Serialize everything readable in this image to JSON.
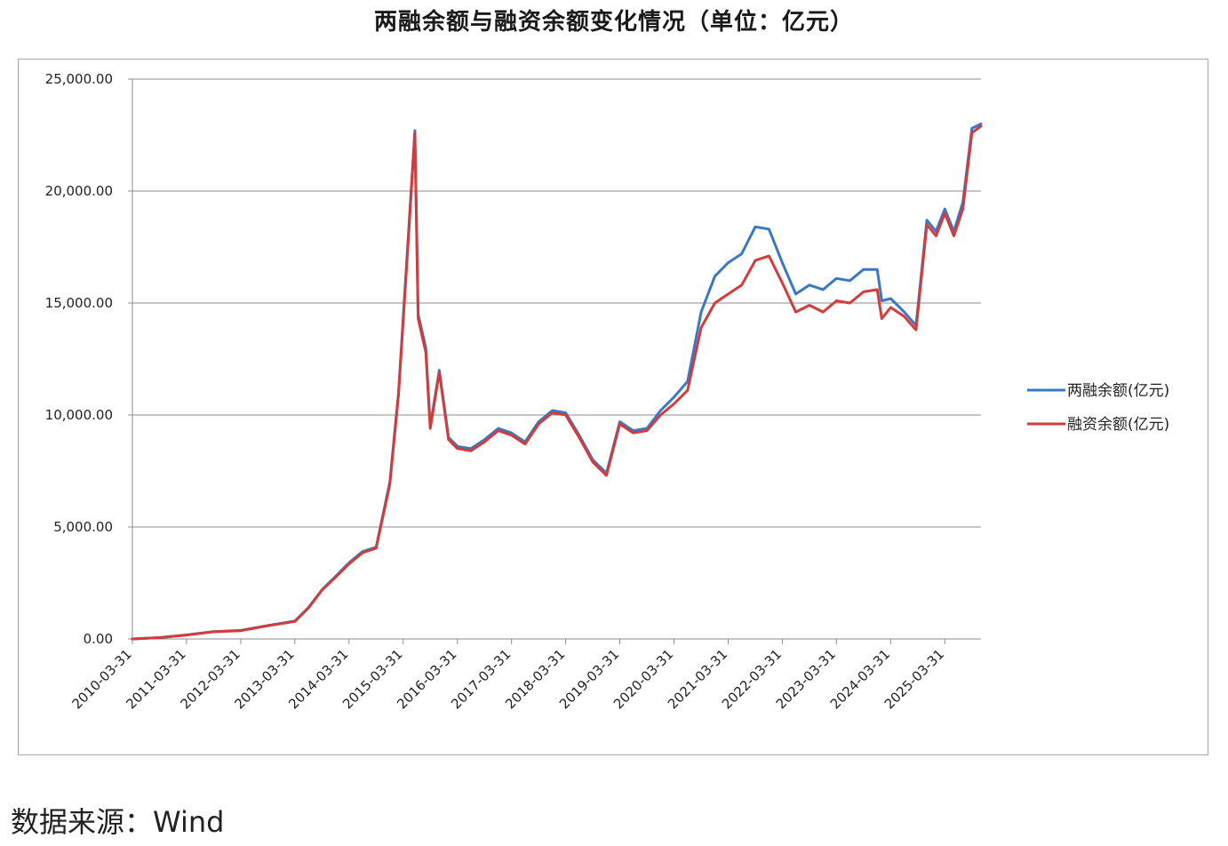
{
  "chart_data": {
    "type": "line",
    "title": "两融余额与融资余额变化情况（单位：亿元）",
    "xlabel": "",
    "ylabel": "",
    "ylim": [
      0,
      25000
    ],
    "xlim": [
      "2010-03-31",
      "2025-11-30"
    ],
    "x_ticks": [
      "2010-03-31",
      "2011-03-31",
      "2012-03-31",
      "2013-03-31",
      "2014-03-31",
      "2015-03-31",
      "2016-03-31",
      "2017-03-31",
      "2018-03-31",
      "2019-03-31",
      "2020-03-31",
      "2021-03-31",
      "2022-03-31",
      "2023-03-31",
      "2024-03-31",
      "2025-03-31"
    ],
    "y_ticks": [
      "0.00",
      "5,000.00",
      "10,000.00",
      "15,000.00",
      "20,000.00",
      "25,000.00"
    ],
    "y_tick_values": [
      0,
      5000,
      10000,
      15000,
      20000,
      25000
    ],
    "grid": true,
    "legend_position": "right",
    "series": [
      {
        "name": "两融余额(亿元)",
        "color": "#3a78c4",
        "points": [
          [
            "2010-03-31",
            0
          ],
          [
            "2010-09-30",
            60
          ],
          [
            "2011-03-31",
            180
          ],
          [
            "2011-09-30",
            330
          ],
          [
            "2012-03-31",
            380
          ],
          [
            "2012-09-30",
            600
          ],
          [
            "2013-03-31",
            800
          ],
          [
            "2013-06-30",
            1400
          ],
          [
            "2013-09-30",
            2200
          ],
          [
            "2013-12-31",
            2800
          ],
          [
            "2014-03-31",
            3400
          ],
          [
            "2014-06-30",
            3900
          ],
          [
            "2014-09-30",
            4100
          ],
          [
            "2014-12-31",
            7000
          ],
          [
            "2015-02-28",
            11000
          ],
          [
            "2015-04-30",
            17500
          ],
          [
            "2015-06-18",
            22700
          ],
          [
            "2015-07-10",
            14500
          ],
          [
            "2015-08-31",
            13000
          ],
          [
            "2015-09-30",
            9500
          ],
          [
            "2015-11-30",
            12000
          ],
          [
            "2016-01-31",
            9000
          ],
          [
            "2016-03-31",
            8600
          ],
          [
            "2016-06-30",
            8500
          ],
          [
            "2016-09-30",
            8900
          ],
          [
            "2016-12-31",
            9400
          ],
          [
            "2017-03-31",
            9200
          ],
          [
            "2017-06-30",
            8800
          ],
          [
            "2017-09-30",
            9700
          ],
          [
            "2017-12-31",
            10200
          ],
          [
            "2018-03-31",
            10100
          ],
          [
            "2018-06-30",
            9100
          ],
          [
            "2018-09-30",
            8000
          ],
          [
            "2018-12-31",
            7400
          ],
          [
            "2019-03-31",
            9700
          ],
          [
            "2019-06-30",
            9300
          ],
          [
            "2019-09-30",
            9400
          ],
          [
            "2019-12-31",
            10200
          ],
          [
            "2020-03-31",
            10800
          ],
          [
            "2020-06-30",
            11500
          ],
          [
            "2020-09-30",
            14600
          ],
          [
            "2020-12-31",
            16200
          ],
          [
            "2021-03-31",
            16800
          ],
          [
            "2021-06-30",
            17200
          ],
          [
            "2021-09-30",
            18400
          ],
          [
            "2021-12-31",
            18300
          ],
          [
            "2022-03-31",
            16800
          ],
          [
            "2022-06-30",
            15400
          ],
          [
            "2022-09-30",
            15800
          ],
          [
            "2022-12-31",
            15600
          ],
          [
            "2023-03-31",
            16100
          ],
          [
            "2023-06-30",
            16000
          ],
          [
            "2023-09-30",
            16500
          ],
          [
            "2023-12-31",
            16500
          ],
          [
            "2024-01-31",
            15100
          ],
          [
            "2024-03-31",
            15200
          ],
          [
            "2024-06-30",
            14600
          ],
          [
            "2024-09-18",
            14000
          ],
          [
            "2024-11-30",
            18700
          ],
          [
            "2025-01-31",
            18200
          ],
          [
            "2025-03-31",
            19200
          ],
          [
            "2025-05-31",
            18200
          ],
          [
            "2025-07-31",
            19500
          ],
          [
            "2025-09-30",
            22800
          ],
          [
            "2025-11-30",
            23000
          ]
        ]
      },
      {
        "name": "融资余额(亿元)",
        "color": "#d23c3c",
        "points": [
          [
            "2010-03-31",
            0
          ],
          [
            "2010-09-30",
            60
          ],
          [
            "2011-03-31",
            175
          ],
          [
            "2011-09-30",
            320
          ],
          [
            "2012-03-31",
            370
          ],
          [
            "2012-09-30",
            590
          ],
          [
            "2013-03-31",
            780
          ],
          [
            "2013-06-30",
            1380
          ],
          [
            "2013-09-30",
            2180
          ],
          [
            "2013-12-31",
            2760
          ],
          [
            "2014-03-31",
            3350
          ],
          [
            "2014-06-30",
            3850
          ],
          [
            "2014-09-30",
            4050
          ],
          [
            "2014-12-31",
            6900
          ],
          [
            "2015-02-28",
            10900
          ],
          [
            "2015-04-30",
            17300
          ],
          [
            "2015-06-18",
            22600
          ],
          [
            "2015-07-10",
            14300
          ],
          [
            "2015-08-31",
            12800
          ],
          [
            "2015-09-30",
            9400
          ],
          [
            "2015-11-30",
            11900
          ],
          [
            "2016-01-31",
            8900
          ],
          [
            "2016-03-31",
            8500
          ],
          [
            "2016-06-30",
            8400
          ],
          [
            "2016-09-30",
            8800
          ],
          [
            "2016-12-31",
            9300
          ],
          [
            "2017-03-31",
            9100
          ],
          [
            "2017-06-30",
            8700
          ],
          [
            "2017-09-30",
            9600
          ],
          [
            "2017-12-31",
            10100
          ],
          [
            "2018-03-31",
            10000
          ],
          [
            "2018-06-30",
            9000
          ],
          [
            "2018-09-30",
            7900
          ],
          [
            "2018-12-31",
            7300
          ],
          [
            "2019-03-31",
            9600
          ],
          [
            "2019-06-30",
            9200
          ],
          [
            "2019-09-30",
            9300
          ],
          [
            "2019-12-31",
            10000
          ],
          [
            "2020-03-31",
            10500
          ],
          [
            "2020-06-30",
            11100
          ],
          [
            "2020-09-30",
            13900
          ],
          [
            "2020-12-31",
            15000
          ],
          [
            "2021-03-31",
            15400
          ],
          [
            "2021-06-30",
            15800
          ],
          [
            "2021-09-30",
            16900
          ],
          [
            "2021-12-31",
            17100
          ],
          [
            "2022-03-31",
            15900
          ],
          [
            "2022-06-30",
            14600
          ],
          [
            "2022-09-30",
            14900
          ],
          [
            "2022-12-31",
            14600
          ],
          [
            "2023-03-31",
            15100
          ],
          [
            "2023-06-30",
            15000
          ],
          [
            "2023-09-30",
            15500
          ],
          [
            "2023-12-31",
            15600
          ],
          [
            "2024-01-31",
            14300
          ],
          [
            "2024-03-31",
            14800
          ],
          [
            "2024-06-30",
            14400
          ],
          [
            "2024-09-18",
            13800
          ],
          [
            "2024-11-30",
            18500
          ],
          [
            "2025-01-31",
            18000
          ],
          [
            "2025-03-31",
            19000
          ],
          [
            "2025-05-31",
            18000
          ],
          [
            "2025-07-31",
            19200
          ],
          [
            "2025-09-30",
            22600
          ],
          [
            "2025-11-30",
            22900
          ]
        ]
      }
    ]
  },
  "source": "数据来源：Wind"
}
